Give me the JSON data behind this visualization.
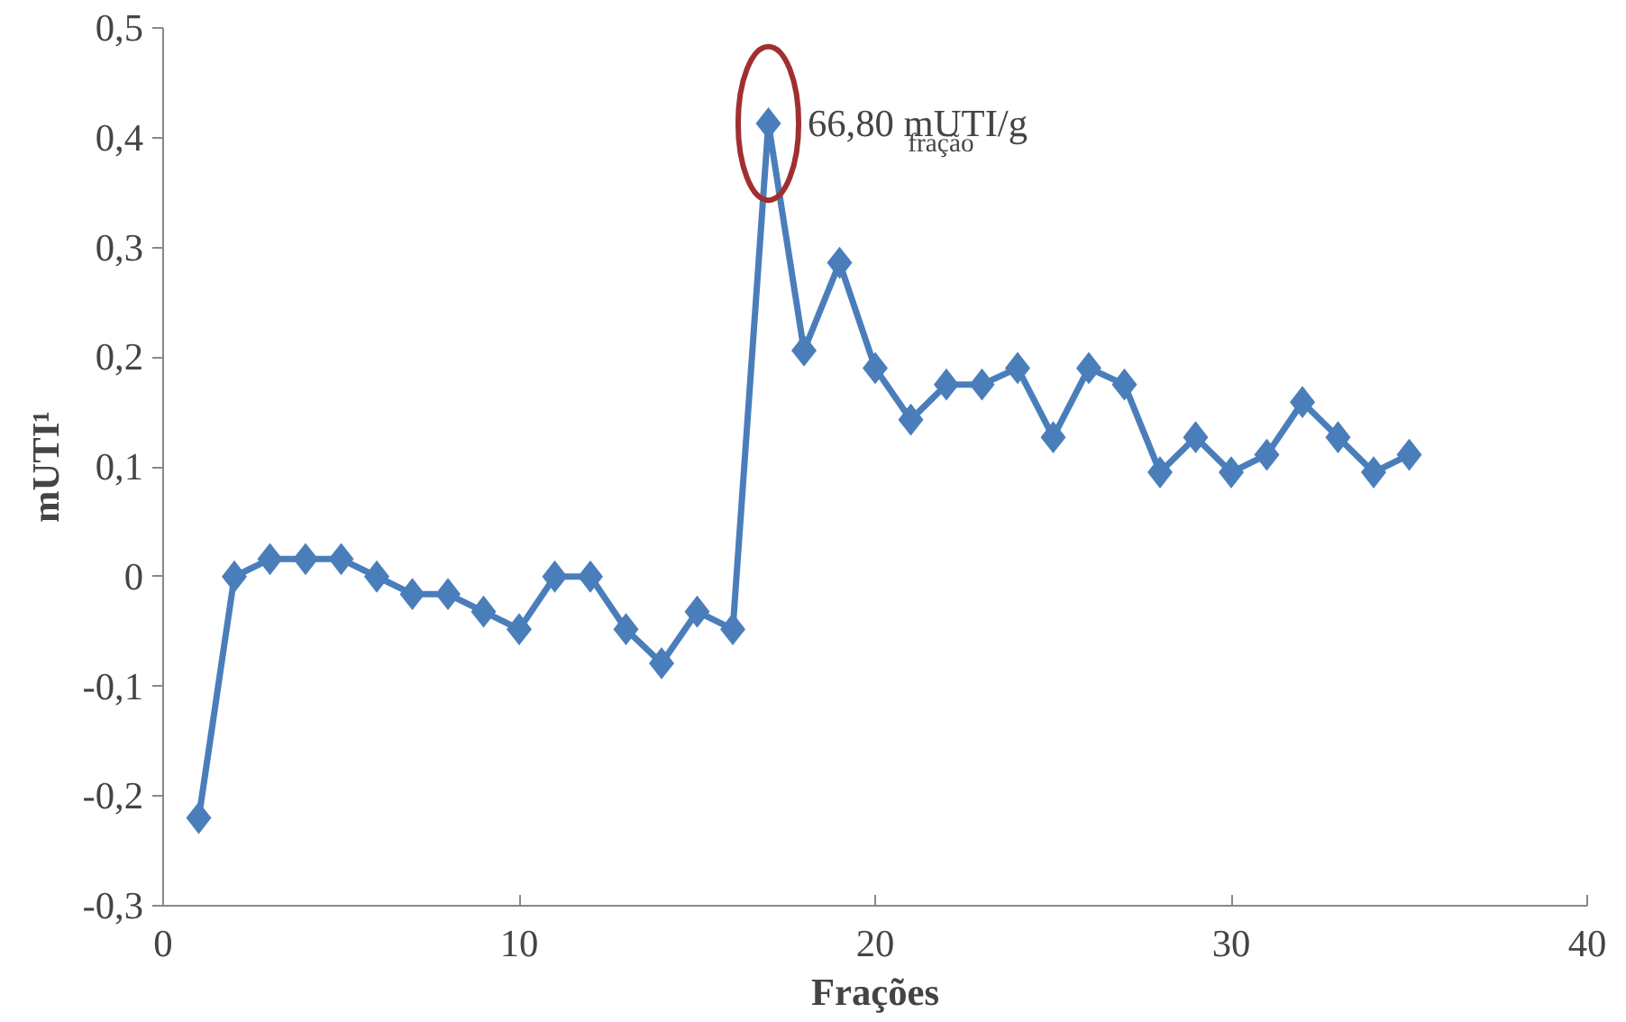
{
  "chart_data": {
    "type": "line",
    "xlabel": "Frações",
    "ylabel": "mUTI¹",
    "x": [
      1,
      2,
      3,
      4,
      5,
      6,
      7,
      8,
      9,
      10,
      11,
      12,
      13,
      14,
      15,
      16,
      17,
      18,
      19,
      20,
      21,
      22,
      23,
      24,
      25,
      26,
      27,
      28,
      29,
      30,
      31,
      32,
      33,
      34,
      35
    ],
    "series": [
      {
        "color": "#4a7ebb",
        "values": [
          -0.22,
          0,
          0.016,
          0.016,
          0.016,
          0,
          -0.016,
          -0.016,
          -0.032,
          -0.048,
          0,
          0,
          -0.048,
          -0.079,
          -0.032,
          -0.048,
          0.413,
          0.206,
          0.286,
          0.19,
          0.143,
          0.175,
          0.175,
          0.19,
          0.127,
          0.19,
          0.175,
          0.095,
          0.127,
          0.095,
          0.111,
          0.159,
          0.127,
          0.095,
          0.111
        ]
      }
    ],
    "xlim": [
      0,
      40
    ],
    "xticks": [
      0,
      10,
      20,
      30,
      40
    ],
    "ylim": [
      -0.3,
      0.5
    ],
    "yticks": [
      {
        "value": -0.3,
        "label": "-0,3"
      },
      {
        "value": -0.2,
        "label": "-0,2"
      },
      {
        "value": -0.1,
        "label": "-0,1"
      },
      {
        "value": 0,
        "label": "0"
      },
      {
        "value": 0.1,
        "label": "0,1"
      },
      {
        "value": 0.2,
        "label": "0,2"
      },
      {
        "value": 0.3,
        "label": "0,3"
      },
      {
        "value": 0.4,
        "label": "0,4"
      },
      {
        "value": 0.5,
        "label": "0,5"
      }
    ],
    "grid": false,
    "marker": "diamond",
    "line_style": "solid",
    "annotations": [
      {
        "text": "66,80 mUTI/g$_{fração}$",
        "x": 17,
        "y": 0.413
      }
    ]
  }
}
